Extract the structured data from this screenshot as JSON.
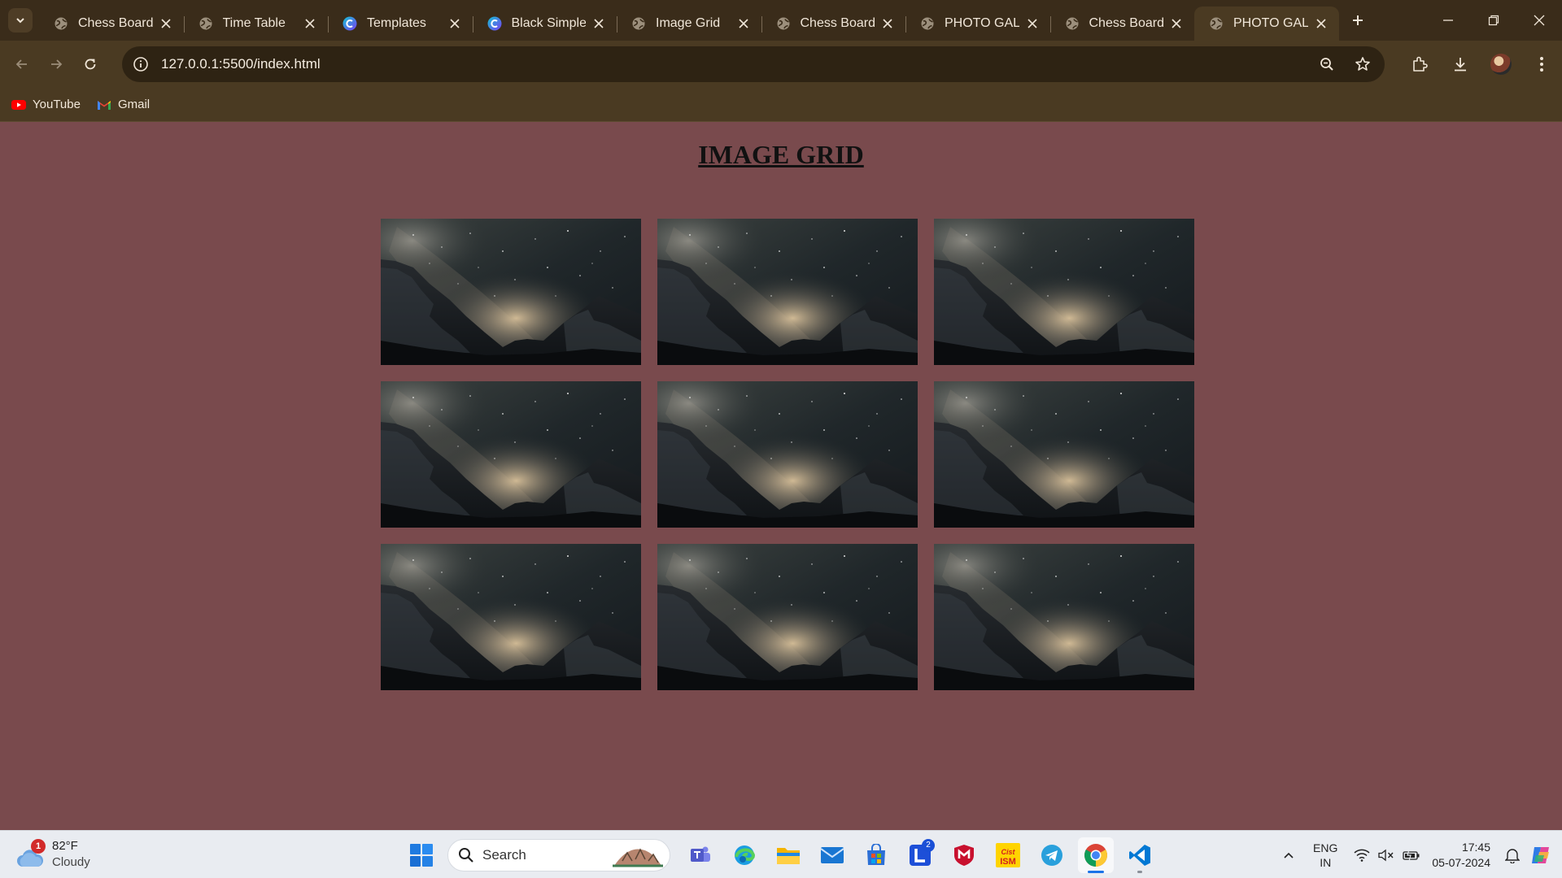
{
  "browser": {
    "tabs": [
      {
        "title": "Chess Board",
        "icon": "globe-icon",
        "active": false
      },
      {
        "title": "Time Table",
        "icon": "globe-icon",
        "active": false
      },
      {
        "title": "Templates",
        "icon": "canva-icon",
        "active": false
      },
      {
        "title": "Black Simple",
        "icon": "canva-icon",
        "active": false
      },
      {
        "title": "Image Grid",
        "icon": "globe-icon",
        "active": false
      },
      {
        "title": "Chess Board",
        "icon": "globe-icon",
        "active": false
      },
      {
        "title": "PHOTO GALL",
        "icon": "globe-icon",
        "active": false
      },
      {
        "title": "Chess Board",
        "icon": "globe-icon",
        "active": false
      },
      {
        "title": "PHOTO GALL",
        "icon": "globe-icon",
        "active": true
      }
    ],
    "url": "127.0.0.1:5500/index.html",
    "bookmarks": [
      {
        "label": "YouTube",
        "icon": "youtube-icon"
      },
      {
        "label": "Gmail",
        "icon": "gmail-icon"
      }
    ]
  },
  "page": {
    "title": "IMAGE GRID",
    "background": "#794a4d",
    "images": [
      {
        "icon": "milky-way-mountain-photo"
      },
      {
        "icon": "milky-way-mountain-photo"
      },
      {
        "icon": "milky-way-mountain-photo"
      },
      {
        "icon": "milky-way-mountain-photo"
      },
      {
        "icon": "milky-way-mountain-photo"
      },
      {
        "icon": "milky-way-mountain-photo"
      },
      {
        "icon": "milky-way-mountain-photo"
      },
      {
        "icon": "milky-way-mountain-photo"
      },
      {
        "icon": "milky-way-mountain-photo"
      }
    ]
  },
  "taskbar": {
    "weather": {
      "temp": "82°F",
      "condition": "Cloudy",
      "badge": "1"
    },
    "search_placeholder": "Search",
    "apps": [
      {
        "name": "teams",
        "icon": "teams-icon"
      },
      {
        "name": "edge",
        "icon": "edge-icon"
      },
      {
        "name": "file-explorer",
        "icon": "folder-icon"
      },
      {
        "name": "mail",
        "icon": "mail-icon"
      },
      {
        "name": "store",
        "icon": "store-icon"
      },
      {
        "name": "l-app",
        "icon": "l-app-icon",
        "badge": "2"
      },
      {
        "name": "mcafee",
        "icon": "mcafee-icon"
      },
      {
        "name": "cisco-ism",
        "icon": "ism-icon",
        "label": "ISM"
      },
      {
        "name": "telegram",
        "icon": "telegram-icon"
      },
      {
        "name": "chrome",
        "icon": "chrome-icon"
      },
      {
        "name": "vscode",
        "icon": "vscode-icon"
      }
    ],
    "language": {
      "line1": "ENG",
      "line2": "IN"
    },
    "time": "17:45",
    "date": "05-07-2024"
  }
}
